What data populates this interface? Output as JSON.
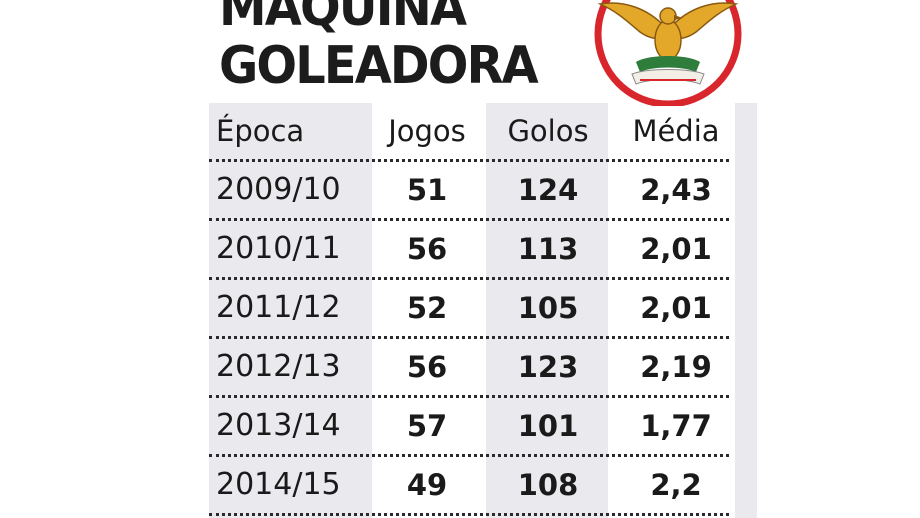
{
  "title": {
    "line1": "MÁQUINA",
    "line2": "GOLEADORA"
  },
  "crest": {
    "icon": "benfica-eagle-crest-icon",
    "colors": {
      "ring": "#d8262c",
      "eagle": "#e3a82a",
      "wreath": "#2e7d3a"
    }
  },
  "table": {
    "headers": {
      "season": "Época",
      "games": "Jogos",
      "goals": "Golos",
      "average": "Média"
    },
    "rows": [
      {
        "season": "2009/10",
        "games": "51",
        "goals": "124",
        "average": "2,43"
      },
      {
        "season": "2010/11",
        "games": "56",
        "goals": "113",
        "average": "2,01"
      },
      {
        "season": "2011/12",
        "games": "52",
        "goals": "105",
        "average": "2,01"
      },
      {
        "season": "2012/13",
        "games": "56",
        "goals": "123",
        "average": "2,19"
      },
      {
        "season": "2013/14",
        "games": "57",
        "goals": "101",
        "average": "1,77"
      },
      {
        "season": "2014/15",
        "games": "49",
        "goals": "108",
        "average": "2,2"
      }
    ]
  }
}
